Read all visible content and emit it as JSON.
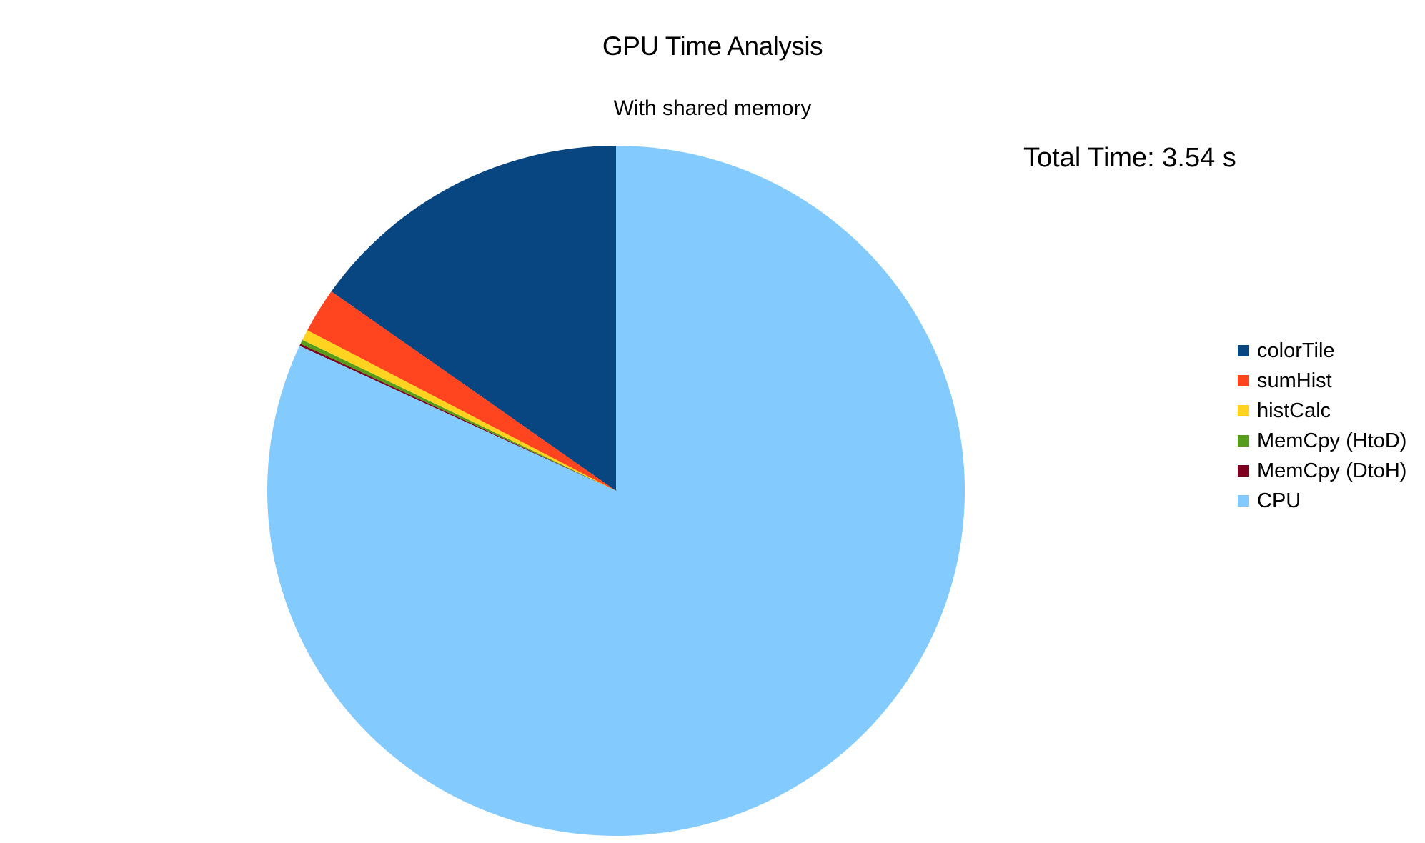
{
  "chart_data": {
    "type": "pie",
    "title": "GPU Time Analysis",
    "subtitle": "With shared memory",
    "annotation": "Total Time: 3.54 s",
    "legend_position": "right",
    "start_angle_deg": 0,
    "direction": "counterclockwise",
    "slices": [
      {
        "label": "colorTile",
        "value": 15.2,
        "color": "#084681"
      },
      {
        "label": "sumHist",
        "value": 2.1,
        "color": "#FF4420"
      },
      {
        "label": "histCalc",
        "value": 0.5,
        "color": "#FFD320"
      },
      {
        "label": "MemCpy (HtoD)",
        "value": 0.2,
        "color": "#579D1C"
      },
      {
        "label": "MemCpy (DtoH)",
        "value": 0.1,
        "color": "#7E0021"
      },
      {
        "label": "CPU",
        "value": 81.9,
        "color": "#83CAFF"
      }
    ]
  }
}
